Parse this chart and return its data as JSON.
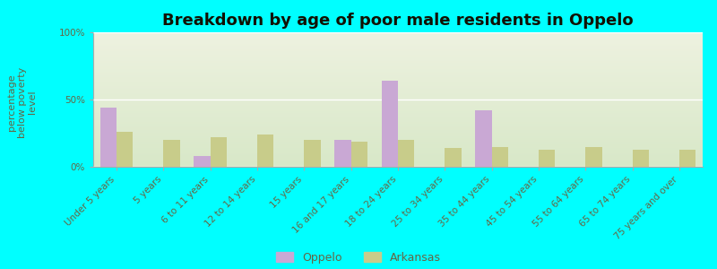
{
  "title": "Breakdown by age of poor male residents in Oppelo",
  "categories": [
    "Under 5 years",
    "5 years",
    "6 to 11 years",
    "12 to 14 years",
    "15 years",
    "16 and 17 years",
    "18 to 24 years",
    "25 to 34 years",
    "35 to 44 years",
    "45 to 54 years",
    "55 to 64 years",
    "65 to 74 years",
    "75 years and over"
  ],
  "oppelo_values": [
    44,
    0,
    8,
    0,
    0,
    20,
    64,
    0,
    42,
    0,
    0,
    0,
    0
  ],
  "arkansas_values": [
    26,
    20,
    22,
    24,
    20,
    19,
    20,
    14,
    15,
    13,
    15,
    13,
    13
  ],
  "oppelo_color": "#c9a8d4",
  "arkansas_color": "#c8cc8a",
  "background_color": "#00ffff",
  "ylabel": "percentage\nbelow poverty\nlevel",
  "ylim": [
    0,
    100
  ],
  "yticks": [
    0,
    50,
    100
  ],
  "ytick_labels": [
    "0%",
    "50%",
    "100%"
  ],
  "bar_width": 0.35,
  "title_fontsize": 13,
  "axis_label_fontsize": 8,
  "tick_fontsize": 7.5,
  "legend_labels": [
    "Oppelo",
    "Arkansas"
  ],
  "legend_fontsize": 9,
  "text_color": "#666644"
}
